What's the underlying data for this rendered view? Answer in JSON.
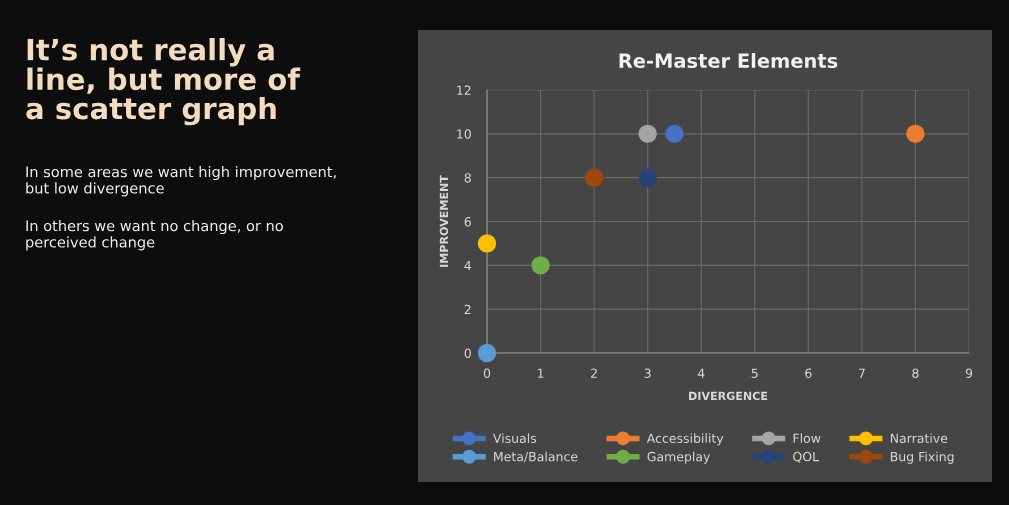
{
  "chart_data": {
    "type": "scatter",
    "title": "Re-Master Elements",
    "xlabel": "DIVERGENCE",
    "ylabel": "IMPROVEMENT",
    "annotations": [
      "It’s not really a\nline, but more of\na scatter graph",
      "In some areas we want high improvement,\nbut low divergence",
      "In others we want no change, or no\nperceived change"
    ],
    "series": [
      {
        "name": "Visuals",
        "color": "#4472c4",
        "x": [
          3.5
        ],
        "values": [
          10
        ]
      },
      {
        "name": "Accessibility",
        "color": "#ed7d31",
        "x": [
          8
        ],
        "values": [
          10
        ]
      },
      {
        "name": "Flow",
        "color": "#a5a5a5",
        "x": [
          3
        ],
        "values": [
          10
        ]
      },
      {
        "name": "Narrative",
        "color": "#ffc000",
        "x": [
          0
        ],
        "values": [
          5
        ]
      },
      {
        "name": "Meta/Balance",
        "color": "#5b9bd5",
        "x": [
          0
        ],
        "values": [
          0
        ]
      },
      {
        "name": "Gameplay",
        "color": "#70ad47",
        "x": [
          1
        ],
        "values": [
          4
        ]
      },
      {
        "name": "QOL",
        "color": "#264478",
        "x": [
          3
        ],
        "values": [
          8
        ]
      },
      {
        "name": "Bug Fixing",
        "color": "#9e480e",
        "x": [
          2
        ],
        "values": [
          8
        ]
      }
    ],
    "xlim": [
      0,
      9
    ],
    "xticks": [
      0,
      1,
      2,
      3,
      4,
      5,
      6,
      7,
      8,
      9
    ],
    "ylim": [
      0,
      12
    ],
    "yticks": [
      0,
      2,
      4,
      6,
      8,
      10,
      12
    ],
    "grid": true,
    "legend": "bottom",
    "marker": "circle"
  }
}
